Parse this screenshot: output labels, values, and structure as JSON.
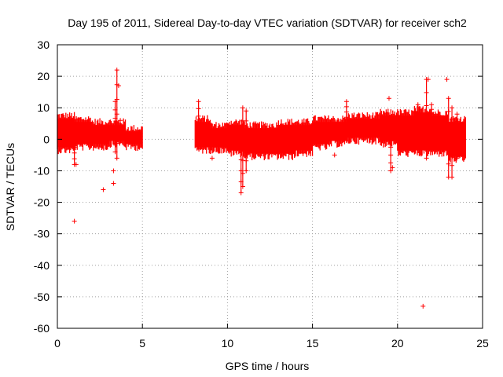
{
  "chart_data": {
    "type": "scatter",
    "title": "Day 195 of 2011, Sidereal Day-to-day VTEC variation (SDTVAR) for receiver sch2",
    "xlabel": "GPS time / hours",
    "ylabel": "SDTVAR / TECUs",
    "xlim": [
      0,
      25
    ],
    "ylim": [
      -60,
      30
    ],
    "xticks": [
      0,
      5,
      10,
      15,
      20,
      25
    ],
    "yticks": [
      30,
      20,
      10,
      0,
      -10,
      -20,
      -30,
      -40,
      -50,
      -60
    ],
    "grid": true,
    "series_color": "#ff0000",
    "series": [
      {
        "name": "SDTVAR",
        "marker": "plus",
        "bands": [
          {
            "x0": 0.0,
            "x1": 1.0,
            "low": -4,
            "high": 8
          },
          {
            "x0": 1.0,
            "x1": 2.0,
            "low": -3,
            "high": 7
          },
          {
            "x0": 2.0,
            "x1": 3.0,
            "low": -3,
            "high": 6
          },
          {
            "x0": 3.0,
            "x1": 4.0,
            "low": -2,
            "high": 6
          },
          {
            "x0": 4.0,
            "x1": 5.0,
            "low": -3,
            "high": 4
          },
          {
            "x0": 8.1,
            "x1": 9.0,
            "low": -4,
            "high": 7
          },
          {
            "x0": 9.0,
            "x1": 10.0,
            "low": -4,
            "high": 5
          },
          {
            "x0": 10.0,
            "x1": 11.0,
            "low": -5,
            "high": 6
          },
          {
            "x0": 11.0,
            "x1": 12.0,
            "low": -6,
            "high": 5
          },
          {
            "x0": 12.0,
            "x1": 13.0,
            "low": -6,
            "high": 5
          },
          {
            "x0": 13.0,
            "x1": 14.0,
            "low": -6,
            "high": 6
          },
          {
            "x0": 14.0,
            "x1": 15.0,
            "low": -5,
            "high": 6
          },
          {
            "x0": 15.0,
            "x1": 16.0,
            "low": -3,
            "high": 7
          },
          {
            "x0": 16.0,
            "x1": 17.0,
            "low": -2,
            "high": 7
          },
          {
            "x0": 17.0,
            "x1": 18.0,
            "low": -1,
            "high": 8
          },
          {
            "x0": 18.0,
            "x1": 19.0,
            "low": -1,
            "high": 8
          },
          {
            "x0": 19.0,
            "x1": 20.0,
            "low": -2,
            "high": 9
          },
          {
            "x0": 20.0,
            "x1": 21.0,
            "low": -5,
            "high": 9
          },
          {
            "x0": 21.0,
            "x1": 22.0,
            "low": -5,
            "high": 10
          },
          {
            "x0": 22.0,
            "x1": 23.0,
            "low": -5,
            "high": 9
          },
          {
            "x0": 23.0,
            "x1": 24.0,
            "low": -7,
            "high": 7
          }
        ],
        "spikes": [
          {
            "x": 3.5,
            "low": -6,
            "high": 22
          },
          {
            "x": 3.4,
            "low": -4,
            "high": 12
          },
          {
            "x": 1.0,
            "low": -8,
            "high": 3
          },
          {
            "x": 8.3,
            "low": -2,
            "high": 12
          },
          {
            "x": 10.8,
            "low": -17,
            "high": 4
          },
          {
            "x": 10.9,
            "low": -15,
            "high": 10
          },
          {
            "x": 11.1,
            "low": -10,
            "high": 9
          },
          {
            "x": 17.0,
            "low": 2,
            "high": 12
          },
          {
            "x": 19.6,
            "low": -10,
            "high": 5
          },
          {
            "x": 21.7,
            "low": -6,
            "high": 19
          },
          {
            "x": 21.2,
            "low": -3,
            "high": 11
          },
          {
            "x": 22.0,
            "low": 2,
            "high": 11
          },
          {
            "x": 23.0,
            "low": -12,
            "high": 13
          },
          {
            "x": 23.2,
            "low": -12,
            "high": 10
          },
          {
            "x": 23.5,
            "low": -6,
            "high": 8
          }
        ],
        "points": [
          {
            "x": 1.0,
            "y": -26
          },
          {
            "x": 2.7,
            "y": -16
          },
          {
            "x": 3.3,
            "y": -14
          },
          {
            "x": 3.3,
            "y": -10
          },
          {
            "x": 3.6,
            "y": 17
          },
          {
            "x": 3.7,
            "y": 6
          },
          {
            "x": 19.5,
            "y": 13
          },
          {
            "x": 21.5,
            "y": -53
          },
          {
            "x": 22.9,
            "y": 19
          },
          {
            "x": 21.8,
            "y": 19
          },
          {
            "x": 16.3,
            "y": -5
          },
          {
            "x": 1.1,
            "y": -8
          },
          {
            "x": 9.1,
            "y": -6
          },
          {
            "x": 19.7,
            "y": -9
          }
        ]
      }
    ]
  }
}
